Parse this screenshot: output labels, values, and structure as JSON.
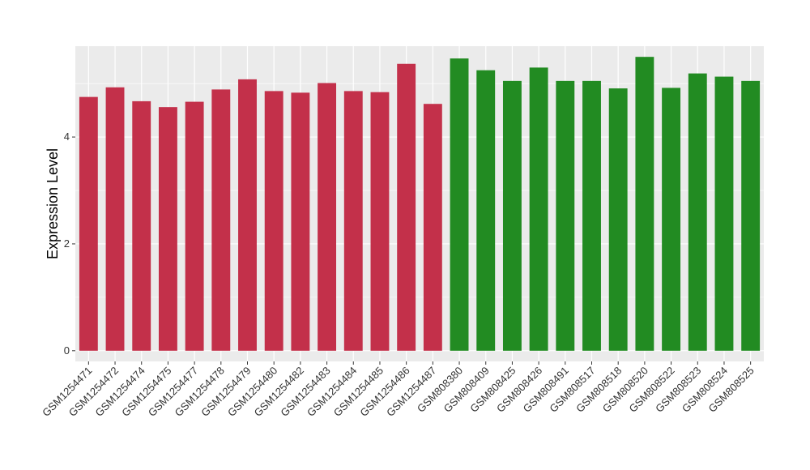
{
  "chart_data": {
    "type": "bar",
    "title": "",
    "xlabel": "",
    "ylabel": "Expression Level",
    "ylim": [
      -0.2,
      5.7
    ],
    "yticks": [
      0,
      2,
      4
    ],
    "grid": true,
    "categories": [
      "GSM1254471",
      "GSM1254472",
      "GSM1254474",
      "GSM1254475",
      "GSM1254477",
      "GSM1254478",
      "GSM1254479",
      "GSM1254480",
      "GSM1254482",
      "GSM1254483",
      "GSM1254484",
      "GSM1254485",
      "GSM1254486",
      "GSM1254487",
      "GSM808380",
      "GSM808409",
      "GSM808425",
      "GSM808426",
      "GSM808491",
      "GSM808517",
      "GSM808518",
      "GSM808520",
      "GSM808522",
      "GSM808523",
      "GSM808524",
      "GSM808525"
    ],
    "values": [
      4.75,
      4.93,
      4.67,
      4.56,
      4.66,
      4.89,
      5.08,
      4.86,
      4.83,
      5.01,
      4.86,
      4.84,
      5.37,
      4.62,
      5.47,
      5.25,
      5.05,
      5.3,
      5.05,
      5.05,
      4.91,
      5.5,
      4.92,
      5.19,
      5.13,
      5.05
    ],
    "colors": [
      "#c3304a",
      "#c3304a",
      "#c3304a",
      "#c3304a",
      "#c3304a",
      "#c3304a",
      "#c3304a",
      "#c3304a",
      "#c3304a",
      "#c3304a",
      "#c3304a",
      "#c3304a",
      "#c3304a",
      "#c3304a",
      "#228b22",
      "#228b22",
      "#228b22",
      "#228b22",
      "#228b22",
      "#228b22",
      "#228b22",
      "#228b22",
      "#228b22",
      "#228b22",
      "#228b22",
      "#228b22"
    ],
    "panel_background": "#ebebeb",
    "grid_color": "#ffffff"
  }
}
